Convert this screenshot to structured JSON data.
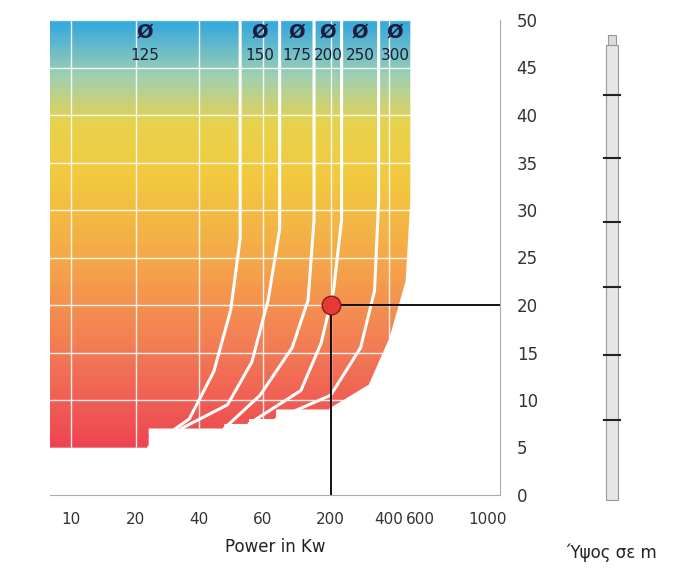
{
  "chart_data": {
    "type": "line",
    "x_label": "Power in Kw",
    "y_label": "Ύψος σε m",
    "xlim": [
      8,
      1100
    ],
    "ylim": [
      0,
      50
    ],
    "xticks": [
      10,
      20,
      40,
      60,
      200,
      400,
      600,
      1000
    ],
    "yticks": [
      0,
      5,
      10,
      15,
      20,
      25,
      30,
      35,
      40,
      45,
      50
    ],
    "grid": true,
    "series": [
      {
        "name": "Ø125",
        "color": "#ffffff",
        "x": [
          52,
          52,
          49,
          44,
          36,
          23
        ],
        "values": [
          50,
          27,
          19.5,
          13,
          8,
          5
        ]
      },
      {
        "name": "Ø150",
        "color": "#ffffff",
        "x": [
          81,
          81,
          66,
          56,
          48,
          33
        ],
        "values": [
          50,
          28,
          20.5,
          14,
          9.5,
          7
        ]
      },
      {
        "name": "Ø175",
        "color": "#ffffff",
        "x": [
          149,
          149,
          134,
          101,
          59,
          47
        ],
        "values": [
          50,
          29,
          20.5,
          15.5,
          10.5,
          7
        ]
      },
      {
        "name": "Ø200",
        "color": "#ffffff",
        "x": [
          228,
          228,
          207,
          169,
          118,
          55
        ],
        "values": [
          50,
          29,
          21.5,
          16,
          11,
          7.5
        ]
      },
      {
        "name": "Ø250",
        "color": "#ffffff",
        "x": [
          355,
          355,
          338,
          286,
          200,
          76
        ],
        "values": [
          50,
          31,
          21.5,
          15.5,
          10.5,
          8
        ]
      },
      {
        "name": "Ø300",
        "color": "#ffffff",
        "x": [
          537,
          537,
          506,
          412,
          320,
          200
        ],
        "values": [
          50,
          31,
          22.5,
          16.5,
          11.5,
          9
        ]
      }
    ],
    "point": {
      "x": 200,
      "y": 20,
      "color": "#e53935"
    }
  }
}
